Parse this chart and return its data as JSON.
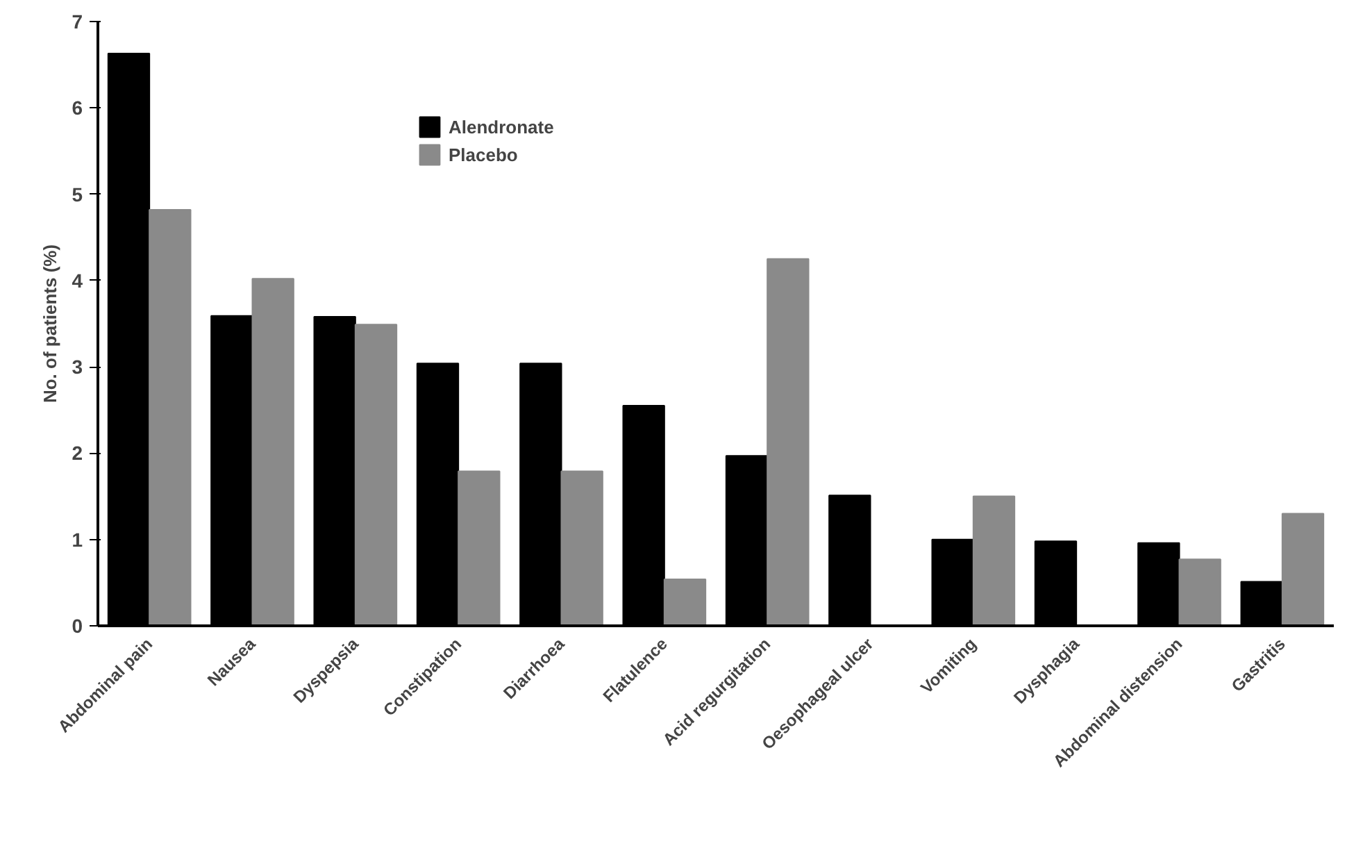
{
  "chart_data": {
    "type": "bar",
    "ylabel": "No. of patients (%)",
    "categories": [
      "Abdominal pain",
      "Nausea",
      "Dyspepsia",
      "Constipation",
      "Diarrhoea",
      "Flatulence",
      "Acid regurgitation",
      "Oesophageal ulcer",
      "Vomiting",
      "Dysphagia",
      "Abdominal distension",
      "Gastritis"
    ],
    "series": [
      {
        "name": "Alendronate",
        "color": "#000000",
        "values": [
          6.63,
          3.59,
          3.58,
          3.04,
          3.04,
          2.55,
          1.97,
          1.51,
          1.0,
          0.98,
          0.96,
          0.51
        ]
      },
      {
        "name": "Placebo",
        "color": "#8a8a8a",
        "values": [
          4.82,
          4.02,
          3.49,
          1.79,
          1.79,
          0.54,
          4.25,
          0,
          1.5,
          0,
          0.77,
          1.3
        ]
      }
    ],
    "ylim": [
      0,
      7
    ],
    "yticks": [
      0,
      1,
      2,
      3,
      4,
      5,
      6,
      7
    ],
    "grid": false,
    "legend": "top"
  }
}
